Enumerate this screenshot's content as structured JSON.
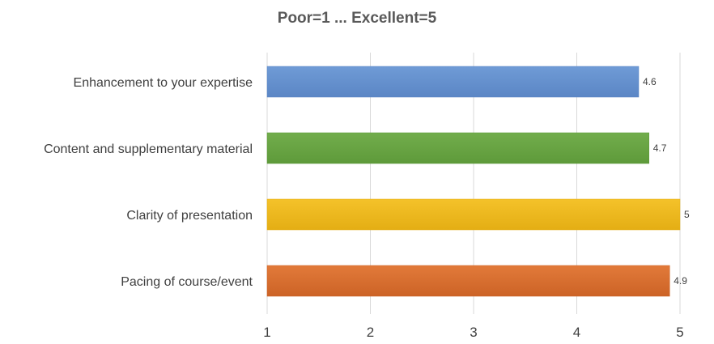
{
  "chart_data": {
    "type": "bar",
    "orientation": "horizontal",
    "title": "Poor=1 ... Excellent=5",
    "xlabel": "",
    "ylabel": "",
    "categories": [
      "Enhancement to your expertise",
      "Content and supplementary material",
      "Clarity of presentation",
      "Pacing of course/event"
    ],
    "values": [
      4.6,
      4.7,
      5,
      4.9
    ],
    "data_labels": [
      "4.6",
      "4.7",
      "5",
      "4.9"
    ],
    "colors": [
      "#6f9bd6",
      "#72ad4c",
      "#f4c22a",
      "#e27a3a"
    ],
    "gradient_dark": [
      "#5b86c5",
      "#5e9a3a",
      "#e4ae14",
      "#cc6326"
    ],
    "xlim": [
      1,
      5
    ],
    "xticks": [
      1,
      2,
      3,
      4,
      5
    ],
    "xtick_labels": [
      "1",
      "2",
      "3",
      "4",
      "5"
    ],
    "grid": true,
    "legend": "none"
  }
}
